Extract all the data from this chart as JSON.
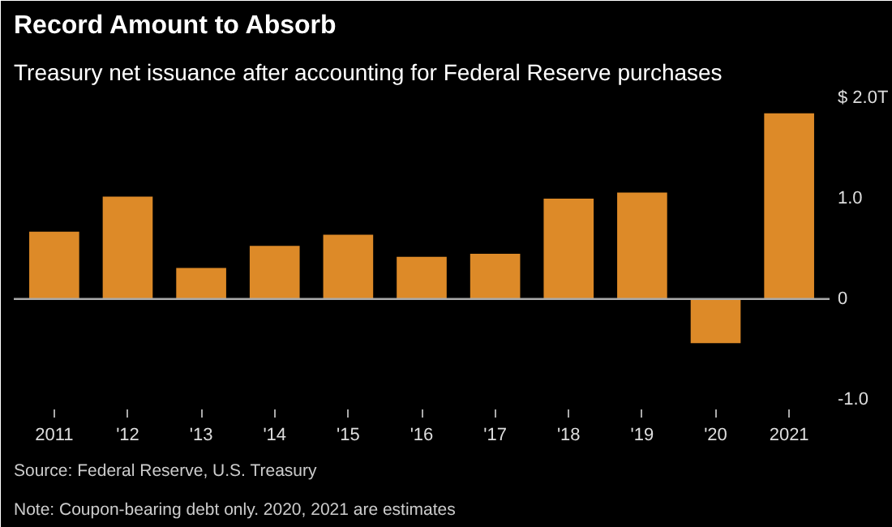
{
  "chart_data": {
    "type": "bar",
    "title": "Record Amount to Absorb",
    "subtitle": "Treasury net issuance after accounting for Federal Reserve purchases",
    "categories": [
      "2011",
      "'12",
      "'13",
      "'14",
      "'15",
      "'16",
      "'17",
      "'18",
      "'19",
      "'20",
      "2021"
    ],
    "values": [
      0.67,
      1.02,
      0.31,
      0.53,
      0.64,
      0.42,
      0.45,
      1.0,
      1.06,
      -0.44,
      1.85
    ],
    "color": "#dd8a28",
    "ylim": [
      -1.1,
      2.05
    ],
    "yticks": [
      {
        "value": -1.0,
        "label": "-1.0"
      },
      0,
      {
        "value": 1.0,
        "label": "1.0"
      },
      {
        "value": 2.0,
        "label": "$ 2.0T"
      }
    ],
    "ref_lines": [
      {
        "axis": "y",
        "value": 0,
        "color": "#aaaaaa"
      }
    ],
    "grid": false,
    "annotations": [
      "Source: Federal Reserve, U.S. Treasury",
      "Note: Coupon-bearing debt only. 2020, 2021 are estimates"
    ]
  }
}
